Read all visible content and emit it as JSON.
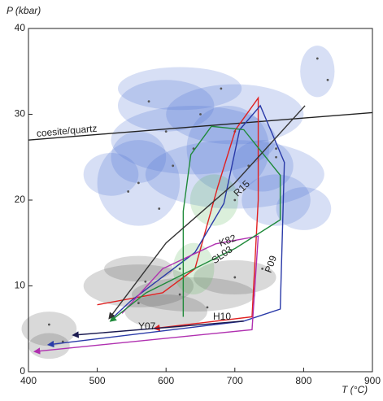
{
  "chart_data": {
    "type": "line",
    "x_label": "T (°C)",
    "y_label": "P (kbar)",
    "xlim": [
      400,
      900
    ],
    "ylim": [
      0,
      40
    ],
    "xticks": [
      400,
      500,
      600,
      700,
      800,
      900
    ],
    "yticks": [
      0,
      10,
      20,
      30,
      40
    ],
    "ellipses": [
      {
        "color": "#4a6fd0",
        "x": [
          640,
          700,
          560,
          760,
          600,
          700,
          620,
          820,
          560,
          690,
          740,
          520,
          800
        ],
        "y": [
          27,
          23,
          22,
          20,
          31,
          30,
          33,
          35,
          25,
          26,
          24,
          23,
          19
        ],
        "x_err": [
          120,
          130,
          60,
          50,
          70,
          100,
          90,
          25,
          40,
          60,
          45,
          40,
          40
        ],
        "y_err": [
          4,
          4,
          5,
          3,
          3,
          3.5,
          2.5,
          3,
          3,
          5,
          3,
          2.5,
          2.5
        ]
      },
      {
        "color": "#505050",
        "x": [
          560,
          640,
          600,
          430,
          430,
          700,
          560
        ],
        "y": [
          10,
          9,
          7,
          5,
          3,
          11,
          12
        ],
        "x_err": [
          80,
          90,
          60,
          40,
          30,
          60,
          50
        ],
        "y_err": [
          2.5,
          2,
          2,
          2,
          1.5,
          2,
          1.5
        ]
      },
      {
        "color": "#5cb85c",
        "x": [
          670,
          640
        ],
        "y": [
          20,
          12
        ],
        "x_err": [
          35,
          30
        ],
        "y_err": [
          3,
          3
        ]
      }
    ],
    "points": {
      "color": "#555555",
      "x": [
        575,
        600,
        650,
        680,
        700,
        720,
        760,
        820,
        835,
        640,
        610,
        560,
        545,
        590,
        700,
        760,
        570,
        620,
        660,
        700,
        740,
        430,
        450,
        560,
        620
      ],
      "y": [
        31.5,
        28,
        30,
        33,
        28,
        24,
        26,
        36.5,
        34,
        26,
        24,
        22,
        21,
        19,
        20,
        25,
        10.5,
        9,
        7.5,
        11,
        12,
        5.5,
        3.5,
        8,
        12
      ]
    },
    "series": [
      {
        "name": "coesite/quartz",
        "color": "#222222",
        "x": [
          400,
          900
        ],
        "y": [
          27.0,
          30.2
        ]
      },
      {
        "name": "H10",
        "color": "#e02020",
        "x": [
          589,
          725,
          734,
          734,
          701,
          675,
          642,
          595,
          500
        ],
        "y": [
          5.1,
          6.4,
          20,
          31.9,
          28.2,
          21.5,
          12.0,
          9.2,
          7.8
        ]
      },
      {
        "name": "P09",
        "color": "#2a3aa8",
        "x": [
          435,
          713,
          766,
          772,
          737,
          707,
          684,
          642,
          548,
          524
        ],
        "y": [
          3.2,
          5.9,
          7.3,
          24.4,
          31.0,
          28.2,
          19.6,
          13.9,
          8.2,
          6.4
        ]
      },
      {
        "name": "K82",
        "color": "#b030b0",
        "x": [
          415,
          725,
          734,
          672,
          595,
          536
        ],
        "y": [
          2.4,
          4.9,
          15.8,
          14.9,
          12.0,
          6.8
        ]
      },
      {
        "name": "SL03",
        "color": "#1f8a3a",
        "x": [
          524,
          571,
          701,
          766,
          766,
          713,
          666,
          636,
          625,
          625
        ],
        "y": [
          6.2,
          9.2,
          14.4,
          17.7,
          22.9,
          28.2,
          28.6,
          25.3,
          18.7,
          6.4
        ]
      },
      {
        "name": "R15",
        "color": "#333333",
        "x": [
          521,
          600,
          700,
          802
        ],
        "y": [
          6.6,
          15,
          22,
          31
        ]
      },
      {
        "name": "Y07",
        "color": "#1a1a50",
        "x": [
          471,
          713
        ],
        "y": [
          4.3,
          5.9
        ]
      }
    ]
  }
}
